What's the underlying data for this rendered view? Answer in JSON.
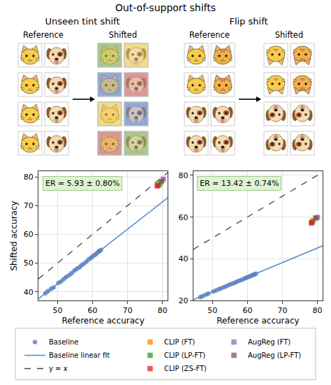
{
  "figure_title": "Out-of-support shifts",
  "diagram": [
    {
      "title": "Unseen tint shift",
      "columns": [
        "Reference",
        "Shifted"
      ]
    },
    {
      "title": "Flip shift",
      "columns": [
        "Reference",
        "Shifted"
      ]
    }
  ],
  "chart_data": [
    {
      "type": "scatter",
      "annotation": "ER = 5.93 ± 0.80%",
      "xlabel": "Reference accuracy",
      "ylabel": "Shifted accuracy",
      "xlim": [
        44.5,
        81.5
      ],
      "ylim": [
        37,
        82
      ],
      "xticks": [
        50,
        60,
        70,
        80
      ],
      "yticks": [
        40,
        50,
        60,
        70,
        80
      ],
      "grid": true,
      "legend": "bottom",
      "series": [
        {
          "name": "Baseline",
          "type": "scatter",
          "marker": "circle",
          "color": "#4c72b0",
          "x": [
            46.5,
            47.2,
            48.1,
            48.8,
            50.2,
            51.0,
            51.8,
            52.5,
            53.3,
            54.0,
            54.8,
            55.5,
            56.2,
            56.8,
            57.5,
            58.2,
            58.9,
            59.5,
            60.0,
            60.6,
            61.1,
            61.6,
            62.0,
            62.4
          ],
          "values": [
            39.5,
            40.2,
            41.0,
            41.5,
            43.1,
            43.6,
            44.5,
            45.2,
            45.8,
            46.5,
            47.4,
            48.0,
            48.5,
            49.2,
            49.8,
            50.5,
            51.3,
            51.8,
            52.3,
            52.8,
            53.3,
            53.9,
            54.2,
            54.6
          ]
        },
        {
          "name": "Baseline linear fit",
          "type": "line",
          "line_style": "solid",
          "color": "#5a8fd0",
          "x": [
            44.5,
            81.5
          ],
          "values": [
            37.6,
            72.7
          ]
        },
        {
          "name": "y = x",
          "type": "line",
          "line_style": "dashed",
          "color": "#444444",
          "x": [
            44.5,
            81.5
          ],
          "values": [
            44.5,
            81.5
          ]
        },
        {
          "name": "CLIP (FT)",
          "type": "scatter",
          "marker": "square",
          "color": "#ff7f0e",
          "x": [
            79.3
          ],
          "values": [
            77.6
          ],
          "x_error": [
            0.4
          ],
          "y_error": [
            0.5
          ]
        },
        {
          "name": "CLIP (LP-FT)",
          "type": "scatter",
          "marker": "square",
          "color": "#2ca02c",
          "x": [
            78.9
          ],
          "values": [
            77.1
          ],
          "x_error": [
            0.4
          ],
          "y_error": [
            0.5
          ]
        },
        {
          "name": "CLIP (ZS-FT)",
          "type": "scatter",
          "marker": "square",
          "color": "#d62728",
          "x": [
            78.5
          ],
          "values": [
            76.9
          ],
          "x_error": [
            0.4
          ],
          "y_error": [
            0.5
          ]
        },
        {
          "name": "AugReg (FT)",
          "type": "scatter",
          "marker": "square",
          "color": "#9467bd",
          "x": [
            80.2
          ],
          "values": [
            79.2
          ],
          "x_error": [
            0.4
          ],
          "y_error": [
            0.5
          ]
        },
        {
          "name": "AugReg (LP-FT)",
          "type": "scatter",
          "marker": "square",
          "color": "#8c564b",
          "x": [
            79.7
          ],
          "values": [
            78.4
          ],
          "x_error": [
            0.4
          ],
          "y_error": [
            0.5
          ]
        }
      ]
    },
    {
      "type": "scatter",
      "annotation": "ER = 13.42 ± 0.74%",
      "xlabel": "Reference accuracy",
      "xlim": [
        44.5,
        81.5
      ],
      "ylim": [
        20,
        82
      ],
      "xticks": [
        50,
        60,
        70,
        80
      ],
      "yticks": [
        20,
        40,
        60,
        80
      ],
      "grid": true,
      "series": [
        {
          "name": "Baseline",
          "type": "scatter",
          "marker": "circle",
          "color": "#4c72b0",
          "x": [
            46.5,
            47.2,
            48.1,
            48.8,
            50.2,
            51.0,
            51.8,
            52.5,
            53.3,
            54.0,
            54.8,
            55.5,
            56.2,
            56.8,
            57.5,
            58.2,
            58.9,
            59.5,
            60.0,
            60.6,
            61.1,
            61.6,
            62.0,
            62.4
          ],
          "values": [
            21.6,
            22.1,
            22.8,
            23.3,
            24.3,
            24.8,
            25.4,
            25.9,
            26.4,
            26.9,
            27.5,
            28.0,
            28.4,
            28.9,
            29.4,
            29.8,
            30.3,
            30.8,
            31.1,
            31.5,
            31.9,
            32.2,
            32.5,
            32.8
          ]
        },
        {
          "name": "Baseline linear fit",
          "type": "line",
          "line_style": "solid",
          "color": "#5a8fd0",
          "x": [
            44.5,
            81.5
          ],
          "values": [
            20.3,
            46.2
          ]
        },
        {
          "name": "y = x",
          "type": "line",
          "line_style": "dashed",
          "color": "#444444",
          "x": [
            44.5,
            81.5
          ],
          "values": [
            44.5,
            81.5
          ]
        },
        {
          "name": "CLIP (FT)",
          "type": "scatter",
          "marker": "square",
          "color": "#ff7f0e",
          "x": [
            78.8
          ],
          "values": [
            58.3
          ],
          "x_error": [
            0.4
          ],
          "y_error": [
            0.8
          ]
        },
        {
          "name": "CLIP (LP-FT)",
          "type": "scatter",
          "marker": "square",
          "color": "#2ca02c",
          "x": [
            78.5
          ],
          "values": [
            57.6
          ],
          "x_error": [
            0.4
          ],
          "y_error": [
            0.8
          ]
        },
        {
          "name": "CLIP (ZS-FT)",
          "type": "scatter",
          "marker": "square",
          "color": "#d62728",
          "x": [
            78.3
          ],
          "values": [
            57.2
          ],
          "x_error": [
            0.4
          ],
          "y_error": [
            0.8
          ]
        },
        {
          "name": "AugReg (FT)",
          "type": "scatter",
          "marker": "square",
          "color": "#9467bd",
          "x": [
            80.0
          ],
          "values": [
            59.8
          ],
          "x_error": [
            0.4
          ],
          "y_error": [
            0.8
          ]
        },
        {
          "name": "AugReg (LP-FT)",
          "type": "scatter",
          "marker": "square",
          "color": "#8c564b",
          "x": [
            79.5
          ],
          "values": [
            59.5
          ],
          "x_error": [
            0.4
          ],
          "y_error": [
            0.8
          ]
        }
      ]
    }
  ]
}
